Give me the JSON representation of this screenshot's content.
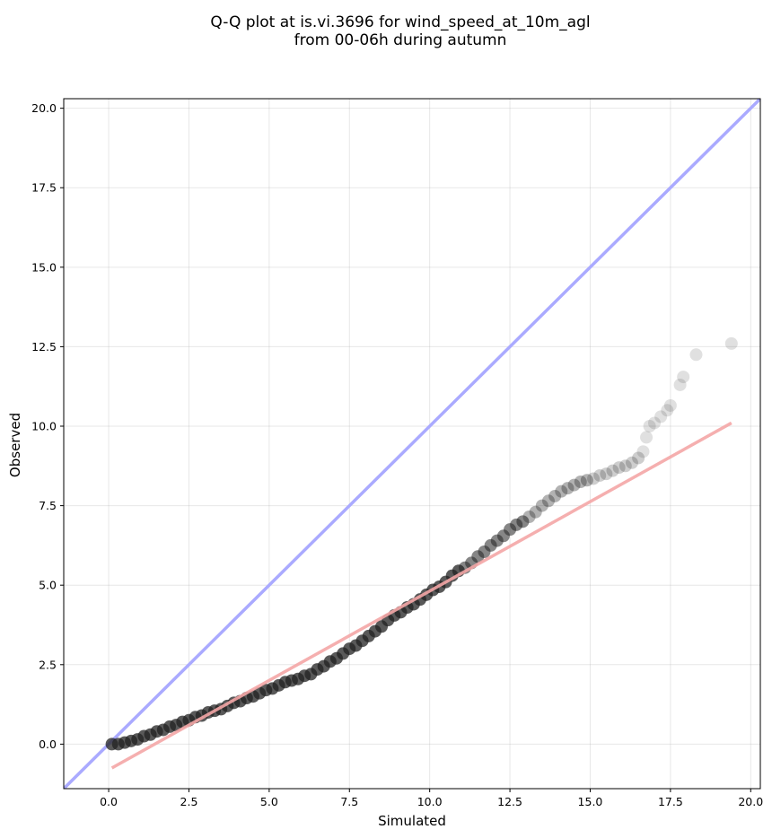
{
  "chart_data": {
    "type": "scatter",
    "title_line1": "Q-Q plot at is.vi.3696 for wind_speed_at_10m_agl",
    "title_line2": "from 00-06h during autumn",
    "xlabel": "Simulated",
    "ylabel": "Observed",
    "xlim": [
      -1.4,
      20.3
    ],
    "ylim": [
      -1.4,
      20.3
    ],
    "xticks": [
      "0.0",
      "2.5",
      "5.0",
      "7.5",
      "10.0",
      "12.5",
      "15.0",
      "17.5",
      "20.0"
    ],
    "yticks": [
      "0.0",
      "2.5",
      "5.0",
      "7.5",
      "10.0",
      "12.5",
      "15.0",
      "17.5",
      "20.0"
    ],
    "grid": true,
    "reference_line": {
      "label": "1:1",
      "color": "#aaaaff",
      "from": [
        -1.4,
        -1.4
      ],
      "to": [
        20.3,
        20.3
      ]
    },
    "fit_line": {
      "color": "#f4a6a6",
      "from": [
        0.1,
        -0.75
      ],
      "to": [
        19.4,
        10.1
      ]
    },
    "marker_color": "#222222",
    "points": [
      [
        0.1,
        0.0
      ],
      [
        0.3,
        0.0
      ],
      [
        0.5,
        0.05
      ],
      [
        0.7,
        0.1
      ],
      [
        0.9,
        0.15
      ],
      [
        1.1,
        0.25
      ],
      [
        1.3,
        0.3
      ],
      [
        1.5,
        0.4
      ],
      [
        1.7,
        0.45
      ],
      [
        1.9,
        0.55
      ],
      [
        2.1,
        0.6
      ],
      [
        2.3,
        0.7
      ],
      [
        2.5,
        0.75
      ],
      [
        2.7,
        0.85
      ],
      [
        2.9,
        0.9
      ],
      [
        3.1,
        1.0
      ],
      [
        3.3,
        1.05
      ],
      [
        3.5,
        1.1
      ],
      [
        3.7,
        1.2
      ],
      [
        3.9,
        1.3
      ],
      [
        4.1,
        1.35
      ],
      [
        4.3,
        1.45
      ],
      [
        4.5,
        1.5
      ],
      [
        4.7,
        1.6
      ],
      [
        4.9,
        1.7
      ],
      [
        5.1,
        1.75
      ],
      [
        5.3,
        1.85
      ],
      [
        5.5,
        1.95
      ],
      [
        5.7,
        2.0
      ],
      [
        5.9,
        2.05
      ],
      [
        6.1,
        2.15
      ],
      [
        6.3,
        2.2
      ],
      [
        6.5,
        2.35
      ],
      [
        6.7,
        2.45
      ],
      [
        6.9,
        2.6
      ],
      [
        7.1,
        2.7
      ],
      [
        7.3,
        2.85
      ],
      [
        7.5,
        3.0
      ],
      [
        7.7,
        3.1
      ],
      [
        7.9,
        3.25
      ],
      [
        8.1,
        3.4
      ],
      [
        8.3,
        3.55
      ],
      [
        8.5,
        3.7
      ],
      [
        8.7,
        3.9
      ],
      [
        8.9,
        4.05
      ],
      [
        9.1,
        4.15
      ],
      [
        9.3,
        4.3
      ],
      [
        9.5,
        4.4
      ],
      [
        9.7,
        4.55
      ],
      [
        9.9,
        4.7
      ],
      [
        10.1,
        4.85
      ],
      [
        10.3,
        4.95
      ],
      [
        10.5,
        5.1
      ],
      [
        10.7,
        5.3
      ],
      [
        10.9,
        5.45
      ],
      [
        11.1,
        5.55
      ],
      [
        11.3,
        5.7
      ],
      [
        11.5,
        5.9
      ],
      [
        11.7,
        6.05
      ],
      [
        11.9,
        6.25
      ],
      [
        12.1,
        6.4
      ],
      [
        12.3,
        6.55
      ],
      [
        12.5,
        6.75
      ],
      [
        12.7,
        6.9
      ],
      [
        12.9,
        7.0
      ],
      [
        13.1,
        7.15
      ],
      [
        13.3,
        7.3
      ],
      [
        13.5,
        7.5
      ],
      [
        13.7,
        7.65
      ],
      [
        13.9,
        7.8
      ],
      [
        14.1,
        7.95
      ],
      [
        14.3,
        8.05
      ],
      [
        14.5,
        8.15
      ],
      [
        14.7,
        8.25
      ],
      [
        14.9,
        8.3
      ],
      [
        15.1,
        8.35
      ],
      [
        15.3,
        8.45
      ],
      [
        15.5,
        8.5
      ],
      [
        15.7,
        8.6
      ],
      [
        15.9,
        8.7
      ],
      [
        16.1,
        8.75
      ],
      [
        16.3,
        8.85
      ],
      [
        16.5,
        9.0
      ],
      [
        16.65,
        9.2
      ],
      [
        16.75,
        9.65
      ],
      [
        16.85,
        10.0
      ],
      [
        17.0,
        10.1
      ],
      [
        17.2,
        10.3
      ],
      [
        17.4,
        10.5
      ],
      [
        17.5,
        10.65
      ],
      [
        17.8,
        11.3
      ],
      [
        17.9,
        11.55
      ],
      [
        18.3,
        12.25
      ],
      [
        19.4,
        12.6
      ]
    ]
  }
}
